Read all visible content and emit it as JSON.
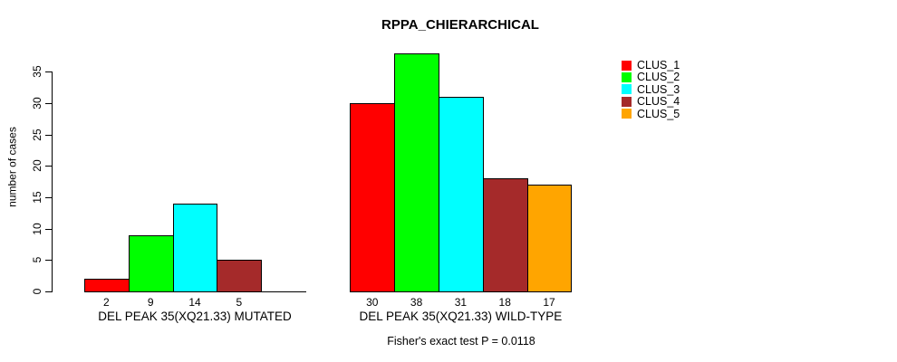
{
  "chart_data": {
    "type": "bar",
    "title": "RPPA_CHIERARCHICAL",
    "ylabel": "number of cases",
    "xlabel": "",
    "ylim": [
      0,
      38
    ],
    "yticks": [
      0,
      5,
      10,
      15,
      20,
      25,
      30,
      35
    ],
    "grid": false,
    "legend_position": "right",
    "categories": [
      "DEL PEAK 35(XQ21.33) MUTATED",
      "DEL PEAK 35(XQ21.33) WILD-TYPE"
    ],
    "series": [
      {
        "name": "CLUS_1",
        "color": "#FF0000",
        "values": [
          2,
          30
        ]
      },
      {
        "name": "CLUS_2",
        "color": "#00FF00",
        "values": [
          9,
          38
        ]
      },
      {
        "name": "CLUS_3",
        "color": "#00FFFF",
        "values": [
          14,
          31
        ]
      },
      {
        "name": "CLUS_4",
        "color": "#A52A2A",
        "values": [
          5,
          18
        ]
      },
      {
        "name": "CLUS_5",
        "color": "#FFA500",
        "values": [
          0,
          17
        ]
      }
    ],
    "bar_outline_color": "#000000",
    "footnote": "Fisher's exact test P = 0.0118"
  }
}
